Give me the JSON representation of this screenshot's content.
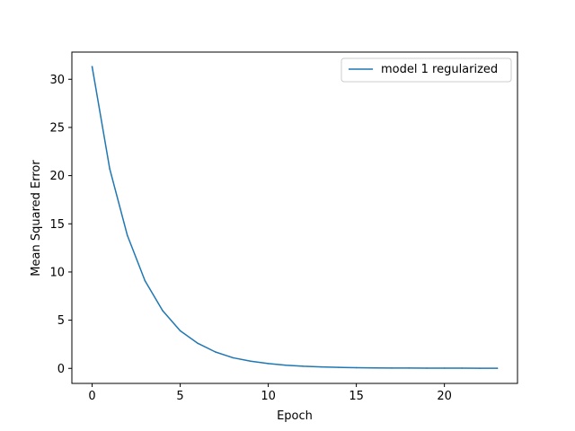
{
  "chart_data": {
    "type": "line",
    "title": "",
    "xlabel": "Epoch",
    "ylabel": "Mean Squared Error",
    "xlim": [
      -1.15,
      24.15
    ],
    "ylim": [
      -1.56,
      32.82
    ],
    "xticks": [
      0,
      5,
      10,
      15,
      20
    ],
    "yticks": [
      0,
      5,
      10,
      15,
      20,
      25,
      30
    ],
    "xtick_labels": [
      "0",
      "5",
      "10",
      "15",
      "20"
    ],
    "ytick_labels": [
      "0",
      "5",
      "10",
      "15",
      "20",
      "25",
      "30"
    ],
    "grid": false,
    "legend_position": "top-right",
    "series": [
      {
        "name": "model 1 regularized",
        "color": "#1f77b4",
        "x": [
          0,
          1,
          2,
          3,
          4,
          5,
          6,
          7,
          8,
          9,
          10,
          11,
          12,
          13,
          14,
          15,
          16,
          17,
          18,
          19,
          20,
          21,
          22,
          23
        ],
        "y": [
          31.3,
          20.7,
          13.8,
          9.1,
          6.0,
          3.9,
          2.6,
          1.7,
          1.1,
          0.75,
          0.5,
          0.33,
          0.22,
          0.15,
          0.1,
          0.07,
          0.05,
          0.04,
          0.03,
          0.02,
          0.02,
          0.02,
          0.01,
          0.01
        ]
      }
    ]
  }
}
